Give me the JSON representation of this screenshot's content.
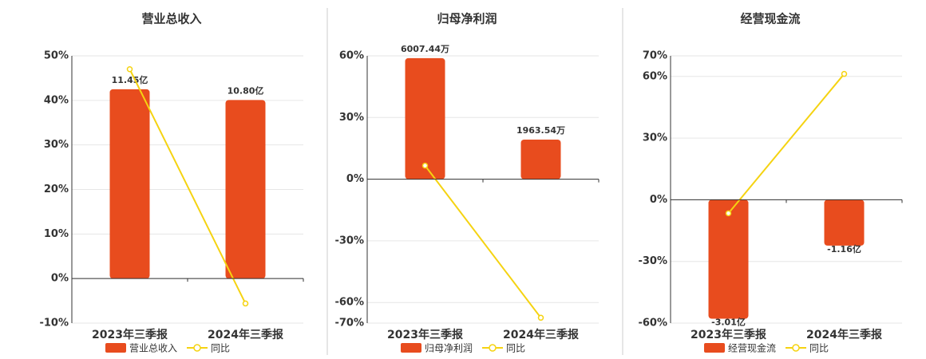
{
  "chart_data": [
    {
      "type": "bar",
      "title": "营业总收入",
      "categories": [
        "2023年三季报",
        "2024年三季报"
      ],
      "series": [
        {
          "name": "营业总收入",
          "color": "#e84c1e",
          "values": [
            11.45,
            10.8
          ],
          "value_labels": [
            "11.45亿",
            "10.80亿"
          ],
          "axis": "y2"
        },
        {
          "name": "同比",
          "color": "#f5d311",
          "type": "line",
          "values": [
            47.0,
            -5.6
          ]
        }
      ],
      "ylim": [
        -10,
        50
      ],
      "yticks": [
        {
          "value": -10,
          "label": "-10%"
        },
        {
          "value": 0,
          "label": "0%"
        },
        {
          "value": 10,
          "label": "10%"
        },
        {
          "value": 20,
          "label": "20%"
        },
        {
          "value": 30,
          "label": "30%"
        },
        {
          "value": 40,
          "label": "40%"
        },
        {
          "value": 50,
          "label": "50%"
        }
      ],
      "y2lim": [
        -2.69,
        13.47
      ],
      "grid": true
    },
    {
      "type": "bar",
      "title": "归母净利润",
      "categories": [
        "2023年三季报",
        "2024年三季报"
      ],
      "series": [
        {
          "name": "归母净利润",
          "color": "#e84c1e",
          "values": [
            6007.44,
            1963.54
          ],
          "value_labels": [
            "6007.44万",
            "1963.54万"
          ],
          "axis": "y2"
        },
        {
          "name": "同比",
          "color": "#f5d311",
          "type": "line",
          "values": [
            6.6,
            -67.4
          ]
        }
      ],
      "ylim": [
        -70,
        60
      ],
      "yticks": [
        {
          "value": -70,
          "label": "-70%"
        },
        {
          "value": -60,
          "label": "-60%"
        },
        {
          "value": -30,
          "label": "-30%"
        },
        {
          "value": 0,
          "label": "0%"
        },
        {
          "value": 30,
          "label": "30%"
        },
        {
          "value": 60,
          "label": "60%"
        }
      ],
      "y2lim": [
        -7140,
        6120
      ],
      "grid": true
    },
    {
      "type": "bar",
      "title": "经营现金流",
      "categories": [
        "2023年三季报",
        "2024年三季报"
      ],
      "series": [
        {
          "name": "经营现金流",
          "color": "#e84c1e",
          "values": [
            -3.01,
            -1.16
          ],
          "value_labels": [
            "-3.01亿",
            "-1.16亿"
          ],
          "axis": "y2"
        },
        {
          "name": "同比",
          "color": "#f5d311",
          "type": "line",
          "values": [
            -6.6,
            61.2
          ]
        }
      ],
      "ylim": [
        -60,
        70
      ],
      "yticks": [
        {
          "value": -60,
          "label": "-60%"
        },
        {
          "value": -30,
          "label": "-30%"
        },
        {
          "value": 0,
          "label": "0%"
        },
        {
          "value": 30,
          "label": "30%"
        },
        {
          "value": 60,
          "label": "60%"
        },
        {
          "value": 70,
          "label": "70%"
        }
      ],
      "y2lim": [
        -3.12,
        3.64
      ],
      "grid": true
    }
  ]
}
